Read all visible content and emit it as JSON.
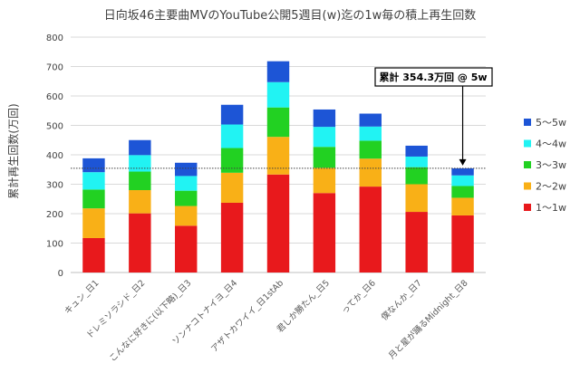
{
  "chart_data": {
    "type": "bar",
    "stacked": true,
    "title": "日向坂46主要曲MVのYouTube公開5週目(w)迄の1w毎の積上再生回数",
    "ylabel": "累計再生回数(万回)",
    "xlabel": "",
    "ylim": [
      0,
      800
    ],
    "yticks": [
      0,
      100,
      200,
      300,
      400,
      500,
      600,
      700,
      800
    ],
    "grid": true,
    "legend_position": "right",
    "categories": [
      "キュン_日1",
      "ドレミソラシド_日2",
      "こんなに好きになっちゃっていいの?(以下略)_日3",
      "ソンナコトナイヨ_日4",
      "アザトカワイイ_日1stAb",
      "君しか勝たん_日5",
      "ってか_日6",
      "僕なんか_日7",
      "月と星が踊るMidnight_日8"
    ],
    "category_labels": [
      "キュン_日1",
      "ドレミソラシド_日2",
      "こんなに好きに(以下略)_日3",
      "ソンナコトナイヨ_日4",
      "アザトカワイイ_日1stAb",
      "君しか勝たん_日5",
      "ってか_日6",
      "僕なんか_日7",
      "月と星が踊るMidnight_日8"
    ],
    "series": [
      {
        "name": "1〜1w",
        "color": "#e8191c",
        "values": [
          117,
          201,
          159,
          237,
          333,
          270,
          292,
          206,
          194
        ]
      },
      {
        "name": "2〜2w",
        "color": "#f9b017",
        "values": [
          101,
          79,
          67,
          102,
          128,
          86,
          95,
          94,
          60
        ]
      },
      {
        "name": "3〜3w",
        "color": "#22d122",
        "values": [
          64,
          63,
          52,
          84,
          100,
          71,
          61,
          58,
          40
        ]
      },
      {
        "name": "4〜4w",
        "color": "#21f3f3",
        "values": [
          59,
          56,
          50,
          80,
          86,
          68,
          48,
          36,
          36
        ]
      },
      {
        "name": "5〜5w",
        "color": "#1d55d6",
        "values": [
          47,
          51,
          45,
          67,
          71,
          59,
          44,
          37,
          24
        ]
      }
    ],
    "reference_line": {
      "value": 354.3,
      "style": "dotted"
    },
    "annotation": {
      "text": "累計 354.3万回 @ 5w",
      "target_category_index": 8
    }
  }
}
